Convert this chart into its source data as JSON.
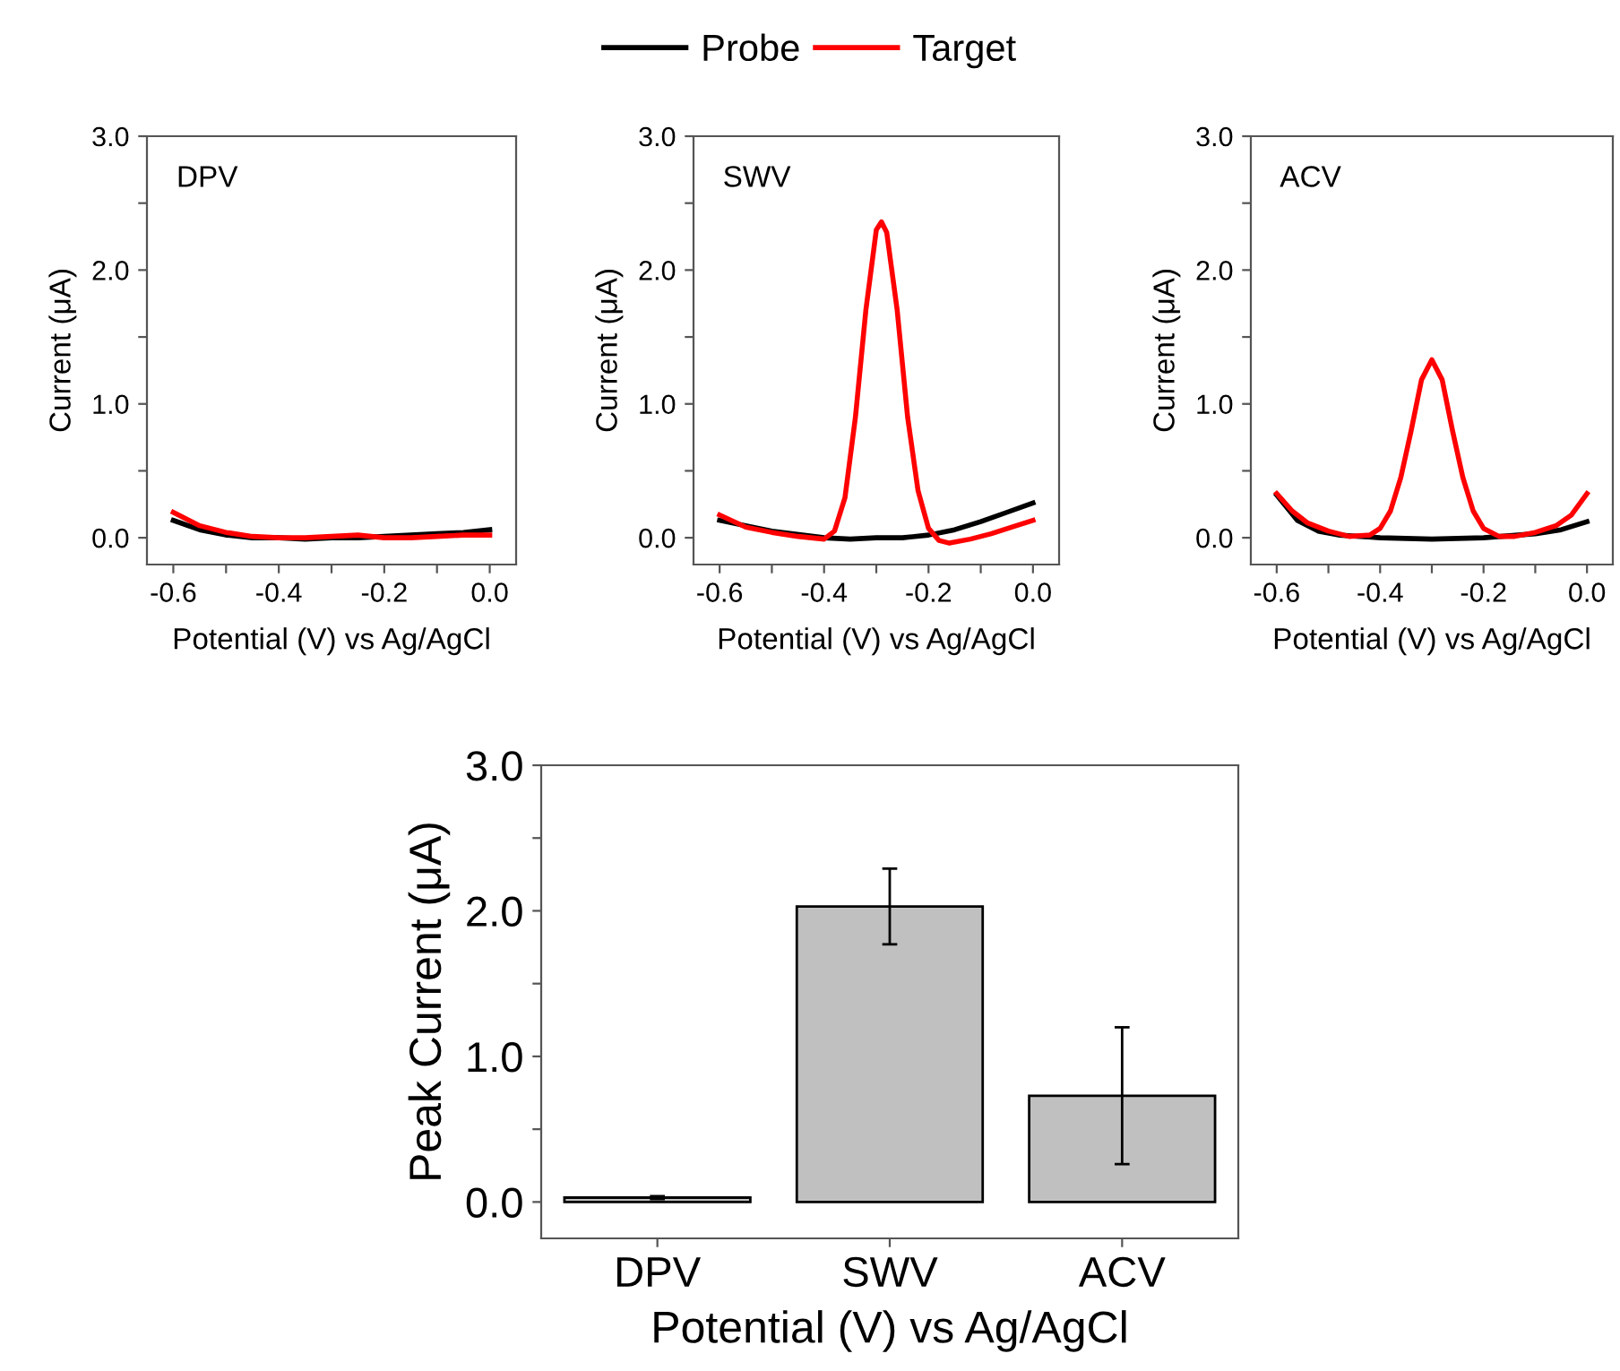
{
  "chart_data": [
    {
      "type": "line",
      "annotations": [
        "DPV"
      ],
      "xlabel": "Potential (V) vs Ag/AgCl",
      "ylabel": "Current (μA)",
      "xlim": [
        -0.65,
        0.05
      ],
      "xticks": [
        -0.6,
        {
          "value": -0.5,
          "label": null
        },
        -0.4,
        {
          "value": -0.3,
          "label": null
        },
        -0.2,
        {
          "value": -0.1,
          "label": null
        },
        {
          "value": 0,
          "label": "0.0"
        }
      ],
      "ylim": [
        -0.2,
        3.0
      ],
      "yticks": [
        {
          "value": 0,
          "label": "0.0"
        },
        {
          "value": 0.5,
          "label": null
        },
        {
          "value": 1,
          "label": "1.0"
        },
        {
          "value": 1.5,
          "label": null
        },
        {
          "value": 2,
          "label": "2.0"
        },
        {
          "value": 2.5,
          "label": null
        },
        {
          "value": 3,
          "label": "3.0"
        }
      ],
      "legend": "top",
      "grid": false,
      "series": [
        {
          "name": "Probe",
          "color": "#000000",
          "x": [
            -0.6,
            -0.55,
            -0.5,
            -0.45,
            -0.4,
            -0.35,
            -0.3,
            -0.25,
            -0.2,
            -0.15,
            -0.1,
            -0.05,
            0.0
          ],
          "values": [
            0.13,
            0.06,
            0.02,
            0.0,
            0.0,
            -0.01,
            0.0,
            0.0,
            0.01,
            0.02,
            0.03,
            0.04,
            0.06
          ]
        },
        {
          "name": "Target",
          "color": "#ff0000",
          "x": [
            -0.6,
            -0.55,
            -0.5,
            -0.45,
            -0.4,
            -0.35,
            -0.3,
            -0.25,
            -0.2,
            -0.15,
            -0.1,
            -0.05,
            0.0
          ],
          "values": [
            0.19,
            0.09,
            0.04,
            0.01,
            0.0,
            0.0,
            0.01,
            0.02,
            0.0,
            0.0,
            0.01,
            0.02,
            0.02
          ]
        }
      ]
    },
    {
      "type": "line",
      "annotations": [
        "SWV"
      ],
      "xlabel": "Potential (V) vs Ag/AgCl",
      "ylabel": "Current (μA)",
      "xlim": [
        -0.65,
        0.05
      ],
      "xticks": [
        -0.6,
        {
          "value": -0.5,
          "label": null
        },
        -0.4,
        {
          "value": -0.3,
          "label": null
        },
        -0.2,
        {
          "value": -0.1,
          "label": null
        },
        {
          "value": 0,
          "label": "0.0"
        }
      ],
      "ylim": [
        -0.2,
        3.0
      ],
      "yticks": [
        {
          "value": 0,
          "label": "0.0"
        },
        {
          "value": 0.5,
          "label": null
        },
        {
          "value": 1,
          "label": "1.0"
        },
        {
          "value": 1.5,
          "label": null
        },
        {
          "value": 2,
          "label": "2.0"
        },
        {
          "value": 2.5,
          "label": null
        },
        {
          "value": 3,
          "label": "3.0"
        }
      ],
      "grid": false,
      "series": [
        {
          "color": "#000000",
          "x": [
            -0.6,
            -0.5,
            -0.4,
            -0.35,
            -0.3,
            -0.25,
            -0.2,
            -0.15,
            -0.1,
            -0.05,
            0.0
          ],
          "values": [
            0.13,
            0.05,
            0.0,
            -0.01,
            0.0,
            0.0,
            0.02,
            0.06,
            0.12,
            0.19,
            0.26
          ]
        },
        {
          "color": "#ff0000",
          "x": [
            -0.6,
            -0.55,
            -0.5,
            -0.45,
            -0.4,
            -0.38,
            -0.36,
            -0.34,
            -0.32,
            -0.3,
            -0.29,
            -0.28,
            -0.26,
            -0.24,
            -0.22,
            -0.2,
            -0.18,
            -0.16,
            -0.12,
            -0.08,
            -0.04,
            0.0
          ],
          "values": [
            0.17,
            0.08,
            0.04,
            0.01,
            -0.01,
            0.05,
            0.3,
            0.9,
            1.7,
            2.3,
            2.36,
            2.28,
            1.7,
            0.9,
            0.35,
            0.07,
            -0.02,
            -0.04,
            -0.01,
            0.03,
            0.08,
            0.13
          ]
        }
      ]
    },
    {
      "type": "line",
      "annotations": [
        "ACV"
      ],
      "xlabel": "Potential (V) vs Ag/AgCl",
      "ylabel": "Current (μA)",
      "xlim": [
        -0.65,
        0.05
      ],
      "xticks": [
        -0.6,
        {
          "value": -0.5,
          "label": null
        },
        -0.4,
        {
          "value": -0.3,
          "label": null
        },
        -0.2,
        {
          "value": -0.1,
          "label": null
        },
        {
          "value": 0,
          "label": "0.0"
        }
      ],
      "ylim": [
        -0.2,
        3.0
      ],
      "yticks": [
        {
          "value": 0,
          "label": "0.0"
        },
        {
          "value": 0.5,
          "label": null
        },
        {
          "value": 1,
          "label": "1.0"
        },
        {
          "value": 1.5,
          "label": null
        },
        {
          "value": 2,
          "label": "2.0"
        },
        {
          "value": 2.5,
          "label": null
        },
        {
          "value": 3,
          "label": "3.0"
        }
      ],
      "grid": false,
      "series": [
        {
          "color": "#000000",
          "x": [
            -0.6,
            -0.56,
            -0.52,
            -0.48,
            -0.4,
            -0.3,
            -0.2,
            -0.1,
            -0.05,
            0.0
          ],
          "values": [
            0.32,
            0.13,
            0.05,
            0.02,
            0.0,
            -0.01,
            0.0,
            0.03,
            0.06,
            0.12
          ]
        },
        {
          "color": "#ff0000",
          "x": [
            -0.6,
            -0.57,
            -0.54,
            -0.5,
            -0.46,
            -0.42,
            -0.4,
            -0.38,
            -0.36,
            -0.34,
            -0.32,
            -0.3,
            -0.28,
            -0.26,
            -0.24,
            -0.22,
            -0.2,
            -0.17,
            -0.14,
            -0.1,
            -0.06,
            -0.03,
            0.0
          ],
          "values": [
            0.33,
            0.2,
            0.11,
            0.05,
            0.01,
            0.02,
            0.07,
            0.2,
            0.45,
            0.8,
            1.18,
            1.33,
            1.18,
            0.8,
            0.45,
            0.2,
            0.07,
            0.01,
            0.01,
            0.04,
            0.09,
            0.17,
            0.33
          ]
        }
      ]
    },
    {
      "type": "bar",
      "xlabel": "Potential (V) vs Ag/AgCl",
      "ylabel": "Peak Current (μA)",
      "categories": [
        "DPV",
        "SWV",
        "ACV"
      ],
      "values": [
        0.03,
        2.03,
        0.73
      ],
      "errors": [
        0.01,
        0.26,
        0.47
      ],
      "color": "#c0c0c0",
      "ylim": [
        -0.25,
        3.0
      ],
      "yticks": [
        {
          "value": 0,
          "label": "0.0"
        },
        {
          "value": 0.5,
          "label": null
        },
        {
          "value": 1,
          "label": "1.0"
        },
        {
          "value": 1.5,
          "label": null
        },
        {
          "value": 2,
          "label": "2.0"
        },
        {
          "value": 2.5,
          "label": null
        },
        {
          "value": 3,
          "label": "3.0"
        }
      ],
      "grid": false
    }
  ]
}
